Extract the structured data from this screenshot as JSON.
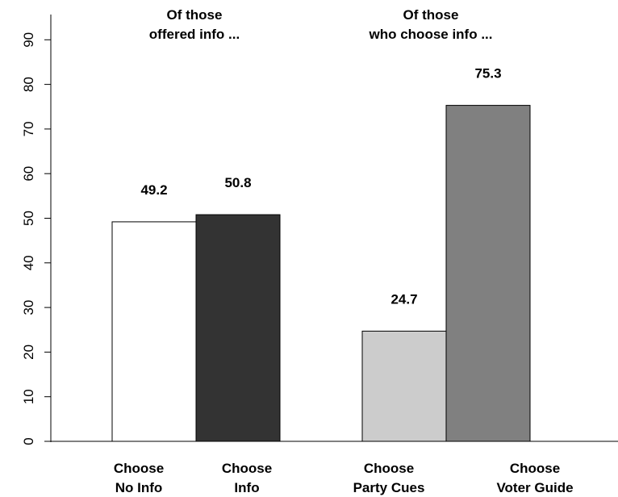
{
  "chart_data": {
    "type": "bar",
    "categories": [
      [
        "Choose",
        "No Info"
      ],
      [
        "Choose",
        "Info"
      ],
      [
        "Choose",
        "Party Cues"
      ],
      [
        "Choose",
        "Voter Guide"
      ]
    ],
    "values": [
      49.2,
      50.8,
      24.7,
      75.3
    ],
    "value_labels": [
      "49.2",
      "50.8",
      "24.7",
      "75.3"
    ],
    "bar_colors": [
      "#ffffff",
      "#333333",
      "#cccccc",
      "#808080"
    ],
    "panel_headings": [
      [
        "Of those",
        "offered info ..."
      ],
      [
        "Of those",
        "who choose info ..."
      ]
    ],
    "y_ticks": [
      0,
      10,
      20,
      30,
      40,
      50,
      60,
      70,
      80,
      90
    ],
    "ylim": [
      0,
      95
    ],
    "grid": false,
    "title": "",
    "xlabel": "",
    "ylabel": ""
  }
}
